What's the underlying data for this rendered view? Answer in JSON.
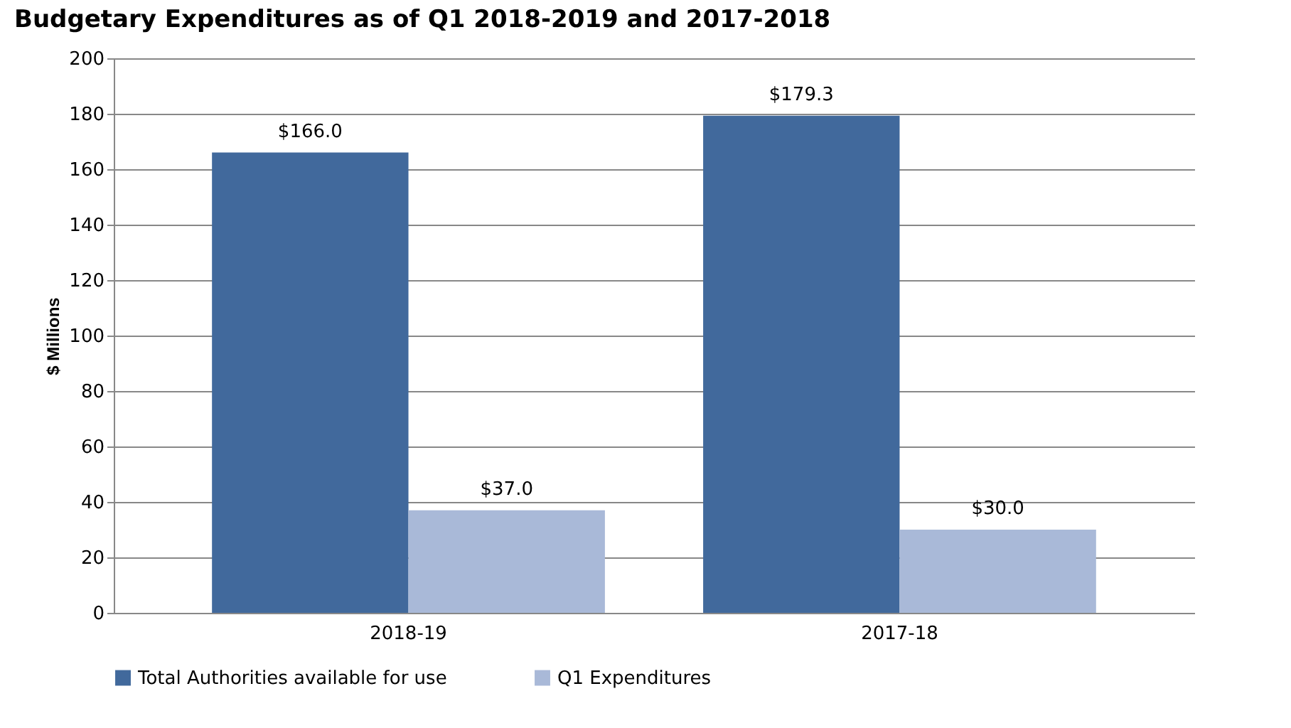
{
  "chart_data": {
    "type": "bar",
    "title": "Budgetary Expenditures as of Q1 2018-2019 and 2017-2018",
    "ylabel": "$ Millions",
    "categories": [
      "2018-19",
      "2017-18"
    ],
    "series": [
      {
        "name": "Total Authorities available for use",
        "color": "#41699c",
        "values": [
          166.0,
          179.3
        ],
        "value_labels": [
          "$166.0",
          "$179.3"
        ]
      },
      {
        "name": "Q1 Expenditures",
        "color": "#a9b9d8",
        "values": [
          37.0,
          30.0
        ],
        "value_labels": [
          "$37.0",
          "$30.0"
        ]
      }
    ],
    "ylim": [
      0,
      200
    ],
    "yticks": [
      0,
      20,
      40,
      60,
      80,
      100,
      120,
      140,
      160,
      180,
      200
    ],
    "grid": "y",
    "legend": "bottom"
  }
}
